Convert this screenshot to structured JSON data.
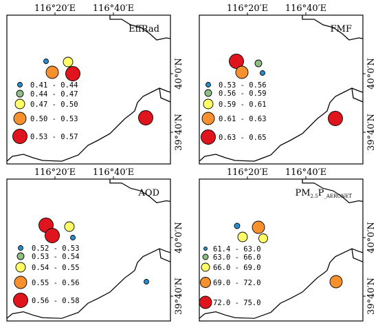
{
  "ticks": {
    "lon": [
      "116°20′E",
      "116°40′E"
    ],
    "lat": [
      "40°0′N",
      "39°40′N"
    ]
  },
  "colors": {
    "class1": "#2a8fd0",
    "class2": "#8fbf85",
    "class3": "#ffff66",
    "class4": "#f7912f",
    "class5": "#e0141c",
    "frame": "#000000",
    "boundary": "#000000"
  },
  "panels": [
    {
      "id": "effrad",
      "title": "EffRad",
      "legend": [
        "0.41 - 0.44",
        "0.44 - 0.47",
        "0.47 - 0.50",
        "0.50 - 0.53",
        "0.53 - 0.57"
      ],
      "sites": [
        {
          "cls": 1,
          "note": "site-a"
        },
        {
          "cls": 3,
          "note": "site-b"
        },
        {
          "cls": 4,
          "note": "site-c"
        },
        {
          "cls": 5,
          "note": "site-d"
        },
        {
          "cls": 5,
          "note": "site-e"
        }
      ]
    },
    {
      "id": "fmf",
      "title": "FMF",
      "legend": [
        "0.53 - 0.56",
        "0.56 - 0.59",
        "0.59 - 0.61",
        "0.61 - 0.63",
        "0.63 - 0.65"
      ],
      "sites": [
        {
          "cls": 5,
          "note": "site-a"
        },
        {
          "cls": 2,
          "note": "site-b"
        },
        {
          "cls": 4,
          "note": "site-c"
        },
        {
          "cls": 1,
          "note": "site-d"
        },
        {
          "cls": 5,
          "note": "site-e"
        }
      ]
    },
    {
      "id": "aod",
      "title": "AOD",
      "legend": [
        "0.52 - 0.53",
        "0.53 - 0.54",
        "0.54 - 0.55",
        "0.55 - 0.56",
        "0.56 - 0.58"
      ],
      "sites": [
        {
          "cls": 5,
          "note": "site-a"
        },
        {
          "cls": 3,
          "note": "site-b"
        },
        {
          "cls": 5,
          "note": "site-c"
        },
        {
          "cls": 1,
          "note": "site-d"
        },
        {
          "cls": 1,
          "note": "site-e"
        }
      ]
    },
    {
      "id": "pm25",
      "title_main": "PM",
      "title_sub1": "2.5",
      "title_mid": "P",
      "title_sub2": "_AERONET",
      "legend": [
        "61.4 - 63.0",
        "63.0 - 66.0",
        "66.0 - 69.0",
        "69.0 - 72.0",
        "72.0 - 75.0"
      ],
      "sites": [
        {
          "cls": 1,
          "note": "site-a"
        },
        {
          "cls": 4,
          "note": "site-b"
        },
        {
          "cls": 3,
          "note": "site-c"
        },
        {
          "cls": 3,
          "note": "site-d"
        },
        {
          "cls": 4,
          "note": "site-e"
        }
      ]
    }
  ]
}
